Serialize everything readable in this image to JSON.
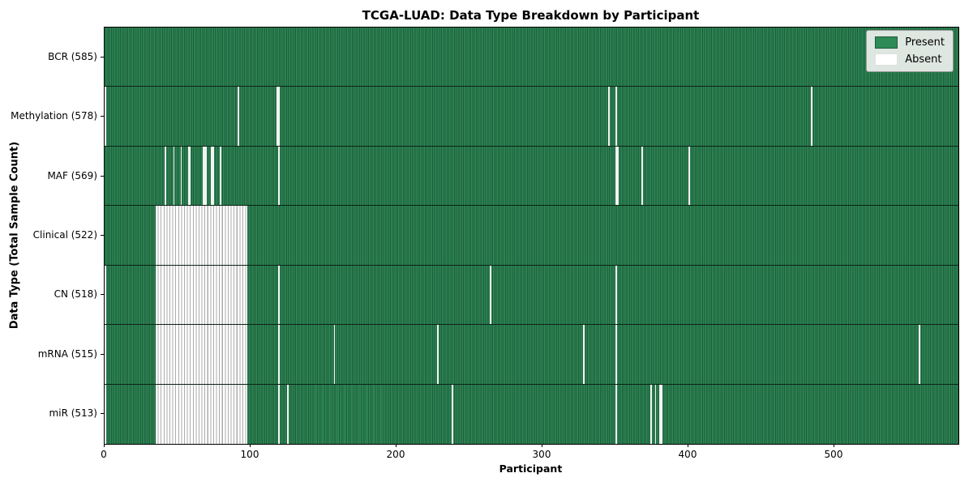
{
  "figure": {
    "title": "TCGA-LUAD: Data Type Breakdown by Participant"
  },
  "chart_data": {
    "type": "heatmap",
    "title": "TCGA-LUAD: Data Type Breakdown by Participant",
    "xlabel": "Participant",
    "ylabel": "Data Type (Total Sample Count)",
    "x_max": 585,
    "x_ticks": [
      0,
      100,
      200,
      300,
      400,
      500
    ],
    "grid": false,
    "colors": {
      "present": "#2e8b57",
      "present_edge": "#1e5a3a",
      "absent": "#ffffff",
      "absent_edge": "#ababab"
    },
    "legend": {
      "position": "upper right",
      "items": [
        {
          "label": "Present",
          "color": "#2e8b57"
        },
        {
          "label": "Absent",
          "color": "#ffffff"
        }
      ]
    },
    "rows": [
      {
        "label": "BCR (585)",
        "data_type": "BCR",
        "present_count": 585,
        "absent_ranges": []
      },
      {
        "label": "Methylation (578)",
        "data_type": "Methylation",
        "present_count": 578,
        "absent_ranges": [
          [
            0,
            0
          ],
          [
            91,
            91
          ],
          [
            118,
            119
          ],
          [
            345,
            345
          ],
          [
            350,
            350
          ],
          [
            484,
            484
          ]
        ]
      },
      {
        "label": "MAF (569)",
        "data_type": "MAF",
        "present_count": 569,
        "absent_ranges": [
          [
            41,
            41
          ],
          [
            47,
            47
          ],
          [
            52,
            52
          ],
          [
            57,
            58
          ],
          [
            67,
            69
          ],
          [
            73,
            74
          ],
          [
            79,
            79
          ],
          [
            119,
            119
          ],
          [
            350,
            351
          ],
          [
            368,
            368
          ],
          [
            400,
            400
          ]
        ]
      },
      {
        "label": "Clinical (522)",
        "data_type": "Clinical",
        "present_count": 522,
        "absent_ranges": [
          [
            35,
            97
          ]
        ]
      },
      {
        "label": "CN (518)",
        "data_type": "CN",
        "present_count": 518,
        "absent_ranges": [
          [
            0,
            0
          ],
          [
            35,
            97
          ],
          [
            119,
            119
          ],
          [
            264,
            264
          ],
          [
            350,
            350
          ]
        ]
      },
      {
        "label": "mRNA (515)",
        "data_type": "mRNA",
        "present_count": 515,
        "absent_ranges": [
          [
            0,
            0
          ],
          [
            35,
            97
          ],
          [
            119,
            119
          ],
          [
            157,
            157
          ],
          [
            228,
            228
          ],
          [
            328,
            328
          ],
          [
            350,
            350
          ],
          [
            558,
            558
          ]
        ]
      },
      {
        "label": "miR (513)",
        "data_type": "miR",
        "present_count": 513,
        "absent_ranges": [
          [
            0,
            0
          ],
          [
            35,
            97
          ],
          [
            119,
            119
          ],
          [
            125,
            125
          ],
          [
            238,
            238
          ],
          [
            350,
            350
          ],
          [
            374,
            374
          ],
          [
            377,
            377
          ],
          [
            380,
            381
          ]
        ]
      }
    ]
  }
}
